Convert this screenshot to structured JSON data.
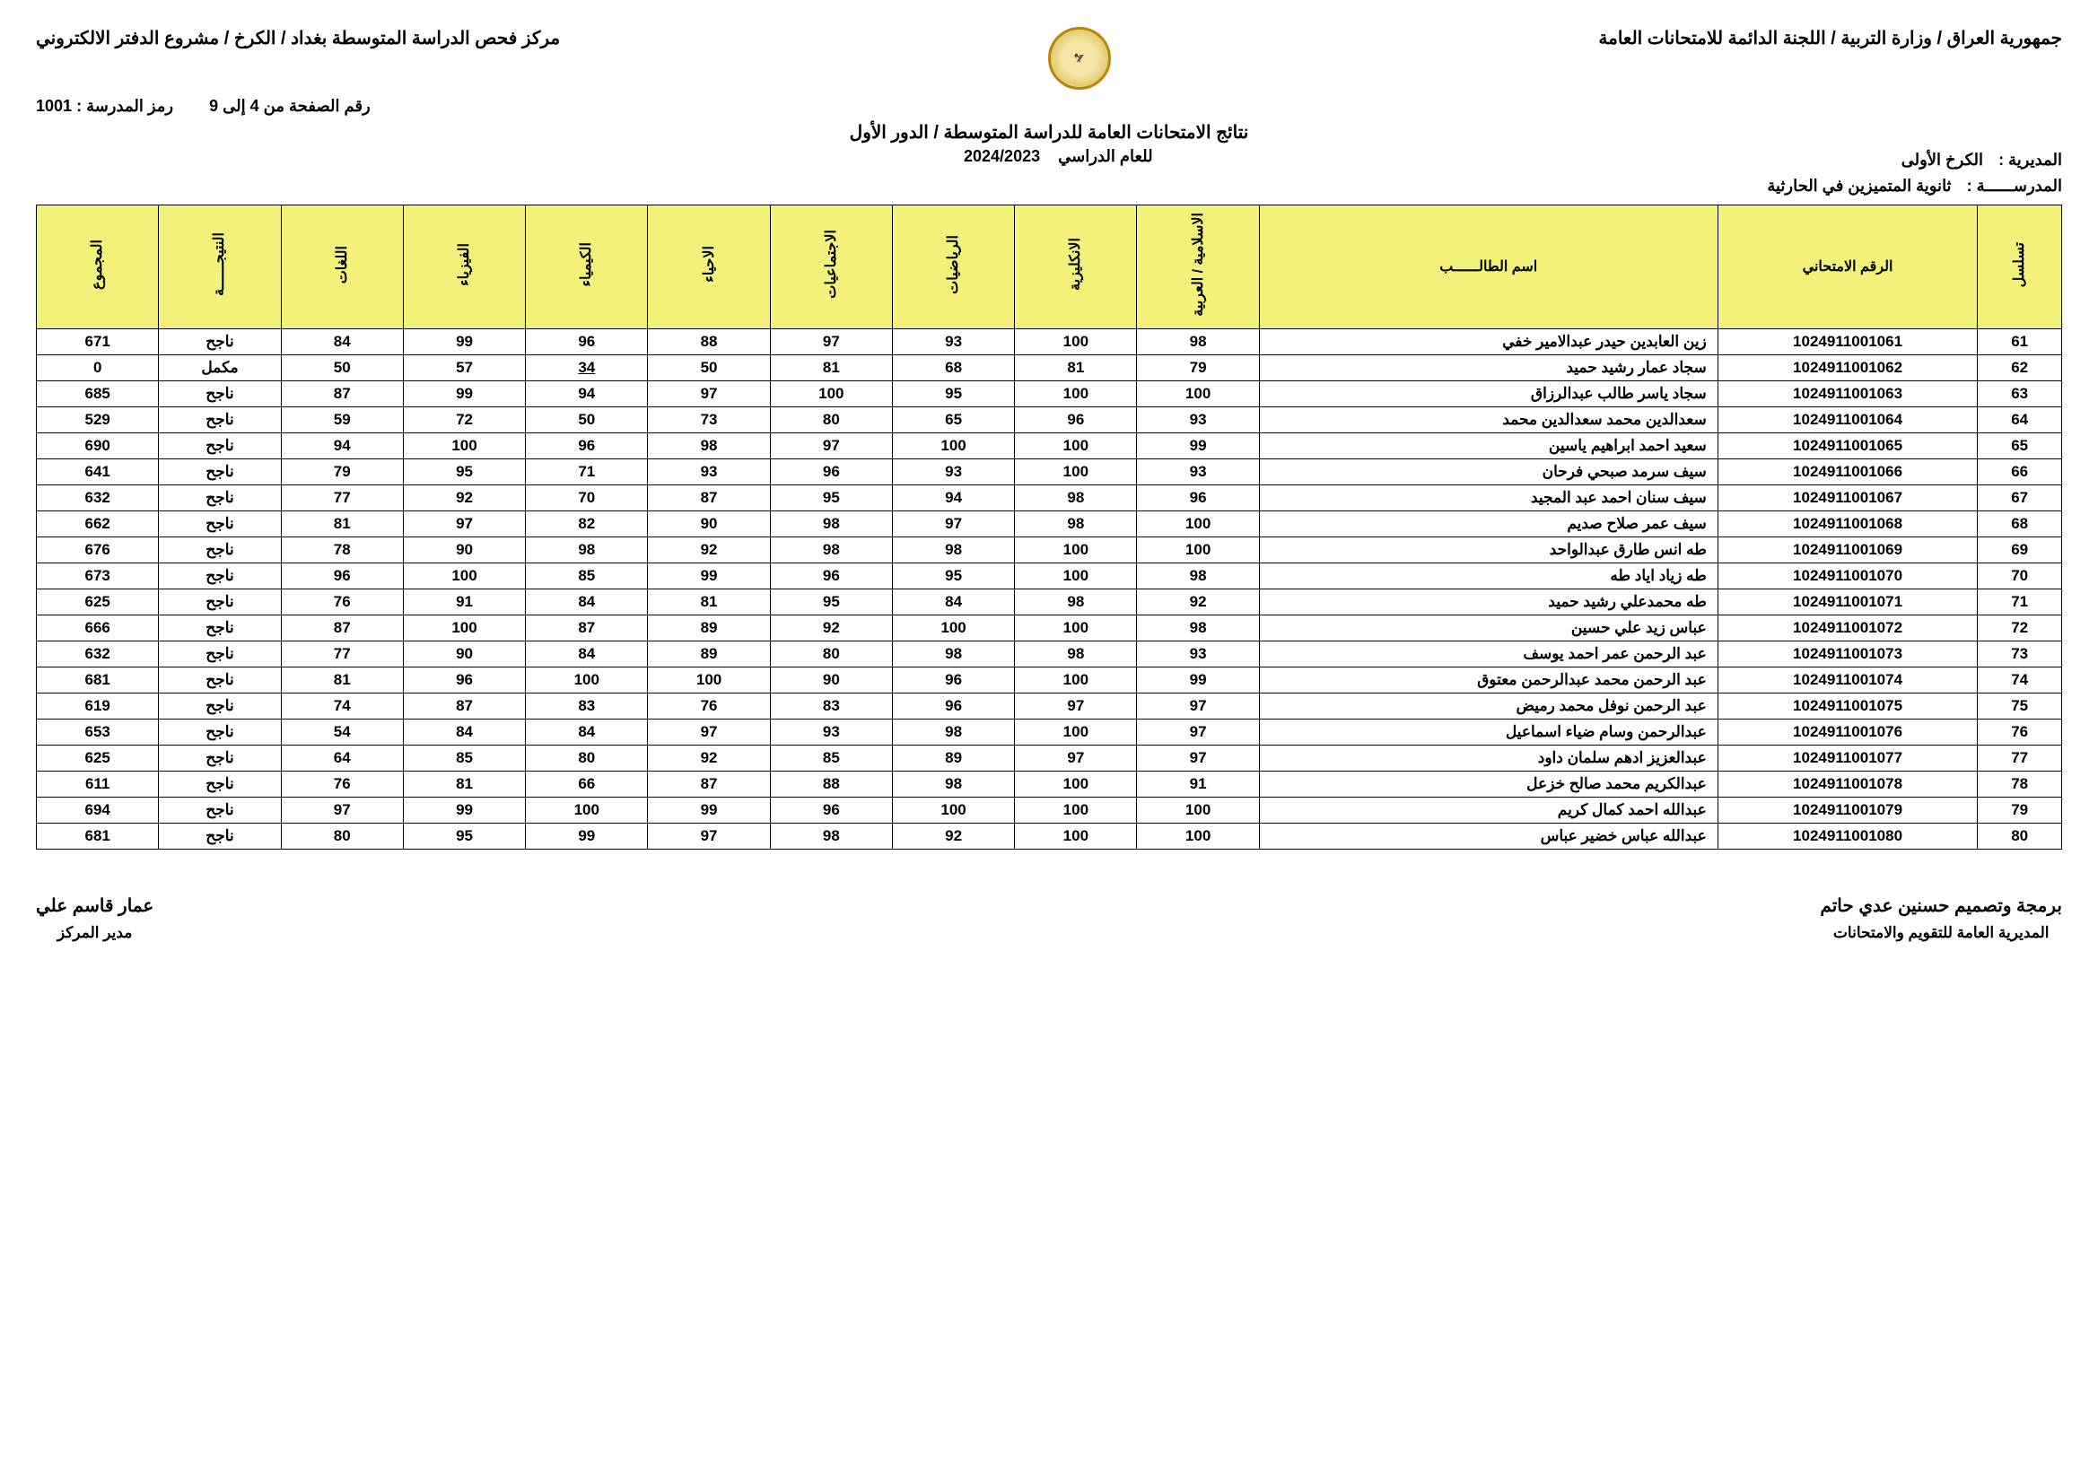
{
  "header": {
    "right_line": "جمهورية العراق / وزارة التربية / اللجنة الدائمة للامتحانات العامة",
    "left_line": "مركز فحص الدراسة المتوسطة بغداد / الكرخ / مشروع الدفتر الالكتروني",
    "school_code_label": "رمز المدرسة :",
    "school_code": "1001",
    "page_label": "رقم الصفحة من 4 إلى 9",
    "results_title": "نتائج الامتحانات العامة للدراسة المتوسطة / الدور الأول",
    "year_label": "للعام الدراسي",
    "year": "2024/2023",
    "directorate_label": "المديرية :",
    "directorate": "الكرخ الأولى",
    "school_label": "المدرســــــة :",
    "school": "ثانوية المتميزين في الحارثية"
  },
  "columns": {
    "seq": "تسلسل",
    "exam_no": "الرقم الامتحاني",
    "name": "اسم الطالــــــب",
    "islamic": "الاسلامية / العربية",
    "english": "الانكليزية",
    "math": "الرياضيات",
    "social": "الاجتماعيات",
    "biology": "الاحياء",
    "chemistry": "الكيمياء",
    "physics": "الفيزياء",
    "arabic_lang": "اللغات",
    "result": "النتيجــــــة",
    "total": "المجموع"
  },
  "rows": [
    {
      "seq": "61",
      "exam": "1024911001061",
      "name": "زين العابدين حيدر عبدالامير خفي",
      "s": [
        "98",
        "100",
        "93",
        "97",
        "88",
        "96",
        "99",
        "84"
      ],
      "res": "ناجح",
      "tot": "671",
      "fail_idx": -1
    },
    {
      "seq": "62",
      "exam": "1024911001062",
      "name": "سجاد عمار رشيد حميد",
      "s": [
        "79",
        "81",
        "68",
        "81",
        "50",
        "34",
        "57",
        "50"
      ],
      "res": "مكمل",
      "tot": "0",
      "fail_idx": 5
    },
    {
      "seq": "63",
      "exam": "1024911001063",
      "name": "سجاد ياسر طالب عبدالرزاق",
      "s": [
        "100",
        "100",
        "95",
        "100",
        "97",
        "94",
        "99",
        "87"
      ],
      "res": "ناجح",
      "tot": "685",
      "fail_idx": -1
    },
    {
      "seq": "64",
      "exam": "1024911001064",
      "name": "سعدالدين محمد سعدالدين محمد",
      "s": [
        "93",
        "96",
        "65",
        "80",
        "73",
        "50",
        "72",
        "59"
      ],
      "res": "ناجح",
      "tot": "529",
      "fail_idx": -1
    },
    {
      "seq": "65",
      "exam": "1024911001065",
      "name": "سعيد احمد ابراهيم ياسين",
      "s": [
        "99",
        "100",
        "100",
        "97",
        "98",
        "96",
        "100",
        "94"
      ],
      "res": "ناجح",
      "tot": "690",
      "fail_idx": -1
    },
    {
      "seq": "66",
      "exam": "1024911001066",
      "name": "سيف سرمد صبحي فرحان",
      "s": [
        "93",
        "100",
        "93",
        "96",
        "93",
        "71",
        "95",
        "79"
      ],
      "res": "ناجح",
      "tot": "641",
      "fail_idx": -1
    },
    {
      "seq": "67",
      "exam": "1024911001067",
      "name": "سيف سنان احمد عبد المجيد",
      "s": [
        "96",
        "98",
        "94",
        "95",
        "87",
        "70",
        "92",
        "77"
      ],
      "res": "ناجح",
      "tot": "632",
      "fail_idx": -1
    },
    {
      "seq": "68",
      "exam": "1024911001068",
      "name": "سيف عمر صلاح صديم",
      "s": [
        "100",
        "98",
        "97",
        "98",
        "90",
        "82",
        "97",
        "81"
      ],
      "res": "ناجح",
      "tot": "662",
      "fail_idx": -1
    },
    {
      "seq": "69",
      "exam": "1024911001069",
      "name": "طه انس طارق عبدالواحد",
      "s": [
        "100",
        "100",
        "98",
        "98",
        "92",
        "98",
        "90",
        "78"
      ],
      "res": "ناجح",
      "tot": "676",
      "fail_idx": -1
    },
    {
      "seq": "70",
      "exam": "1024911001070",
      "name": "طه زياد اياد طه",
      "s": [
        "98",
        "100",
        "95",
        "96",
        "99",
        "85",
        "100",
        "96"
      ],
      "res": "ناجح",
      "tot": "673",
      "fail_idx": -1
    },
    {
      "seq": "71",
      "exam": "1024911001071",
      "name": "طه محمدعلي رشيد حميد",
      "s": [
        "92",
        "98",
        "84",
        "95",
        "81",
        "84",
        "91",
        "76"
      ],
      "res": "ناجح",
      "tot": "625",
      "fail_idx": -1
    },
    {
      "seq": "72",
      "exam": "1024911001072",
      "name": "عباس زيد علي حسين",
      "s": [
        "98",
        "100",
        "100",
        "92",
        "89",
        "87",
        "100",
        "87"
      ],
      "res": "ناجح",
      "tot": "666",
      "fail_idx": -1
    },
    {
      "seq": "73",
      "exam": "1024911001073",
      "name": "عبد الرحمن عمر احمد يوسف",
      "s": [
        "93",
        "98",
        "98",
        "80",
        "89",
        "84",
        "90",
        "77"
      ],
      "res": "ناجح",
      "tot": "632",
      "fail_idx": -1
    },
    {
      "seq": "74",
      "exam": "1024911001074",
      "name": "عبد الرحمن محمد عبدالرحمن معتوق",
      "s": [
        "99",
        "100",
        "96",
        "90",
        "100",
        "100",
        "96",
        "81"
      ],
      "res": "ناجح",
      "tot": "681",
      "fail_idx": -1
    },
    {
      "seq": "75",
      "exam": "1024911001075",
      "name": "عبد الرحمن نوفل محمد رميض",
      "s": [
        "97",
        "97",
        "96",
        "83",
        "76",
        "83",
        "87",
        "74"
      ],
      "res": "ناجح",
      "tot": "619",
      "fail_idx": -1
    },
    {
      "seq": "76",
      "exam": "1024911001076",
      "name": "عبدالرحمن وسام ضياء اسماعيل",
      "s": [
        "97",
        "100",
        "98",
        "93",
        "97",
        "84",
        "84",
        "54"
      ],
      "res": "ناجح",
      "tot": "653",
      "fail_idx": -1
    },
    {
      "seq": "77",
      "exam": "1024911001077",
      "name": "عبدالعزيز ادهم سلمان داود",
      "s": [
        "97",
        "97",
        "89",
        "85",
        "92",
        "80",
        "85",
        "64"
      ],
      "res": "ناجح",
      "tot": "625",
      "fail_idx": -1
    },
    {
      "seq": "78",
      "exam": "1024911001078",
      "name": "عبدالكريم محمد صالح خزعل",
      "s": [
        "91",
        "100",
        "98",
        "88",
        "87",
        "66",
        "81",
        "76"
      ],
      "res": "ناجح",
      "tot": "611",
      "fail_idx": -1
    },
    {
      "seq": "79",
      "exam": "1024911001079",
      "name": "عبدالله احمد كمال كريم",
      "s": [
        "100",
        "100",
        "100",
        "96",
        "99",
        "100",
        "99",
        "97"
      ],
      "res": "ناجح",
      "tot": "694",
      "fail_idx": -1
    },
    {
      "seq": "80",
      "exam": "1024911001080",
      "name": "عبدالله عباس خضير عباس",
      "s": [
        "100",
        "100",
        "92",
        "98",
        "97",
        "99",
        "95",
        "80"
      ],
      "res": "ناجح",
      "tot": "681",
      "fail_idx": -1
    }
  ],
  "footer": {
    "right_name": "برمجة وتصميم حسنين عدي حاتم",
    "right_sub": "المديرية العامة للتقويم والامتحانات",
    "left_name": "عمار قاسم علي",
    "left_sub": "مدير المركز"
  },
  "style": {
    "header_bg": "#f2f27a",
    "border_color": "#000000",
    "page_bg": "#ffffff",
    "text_color": "#000000"
  }
}
